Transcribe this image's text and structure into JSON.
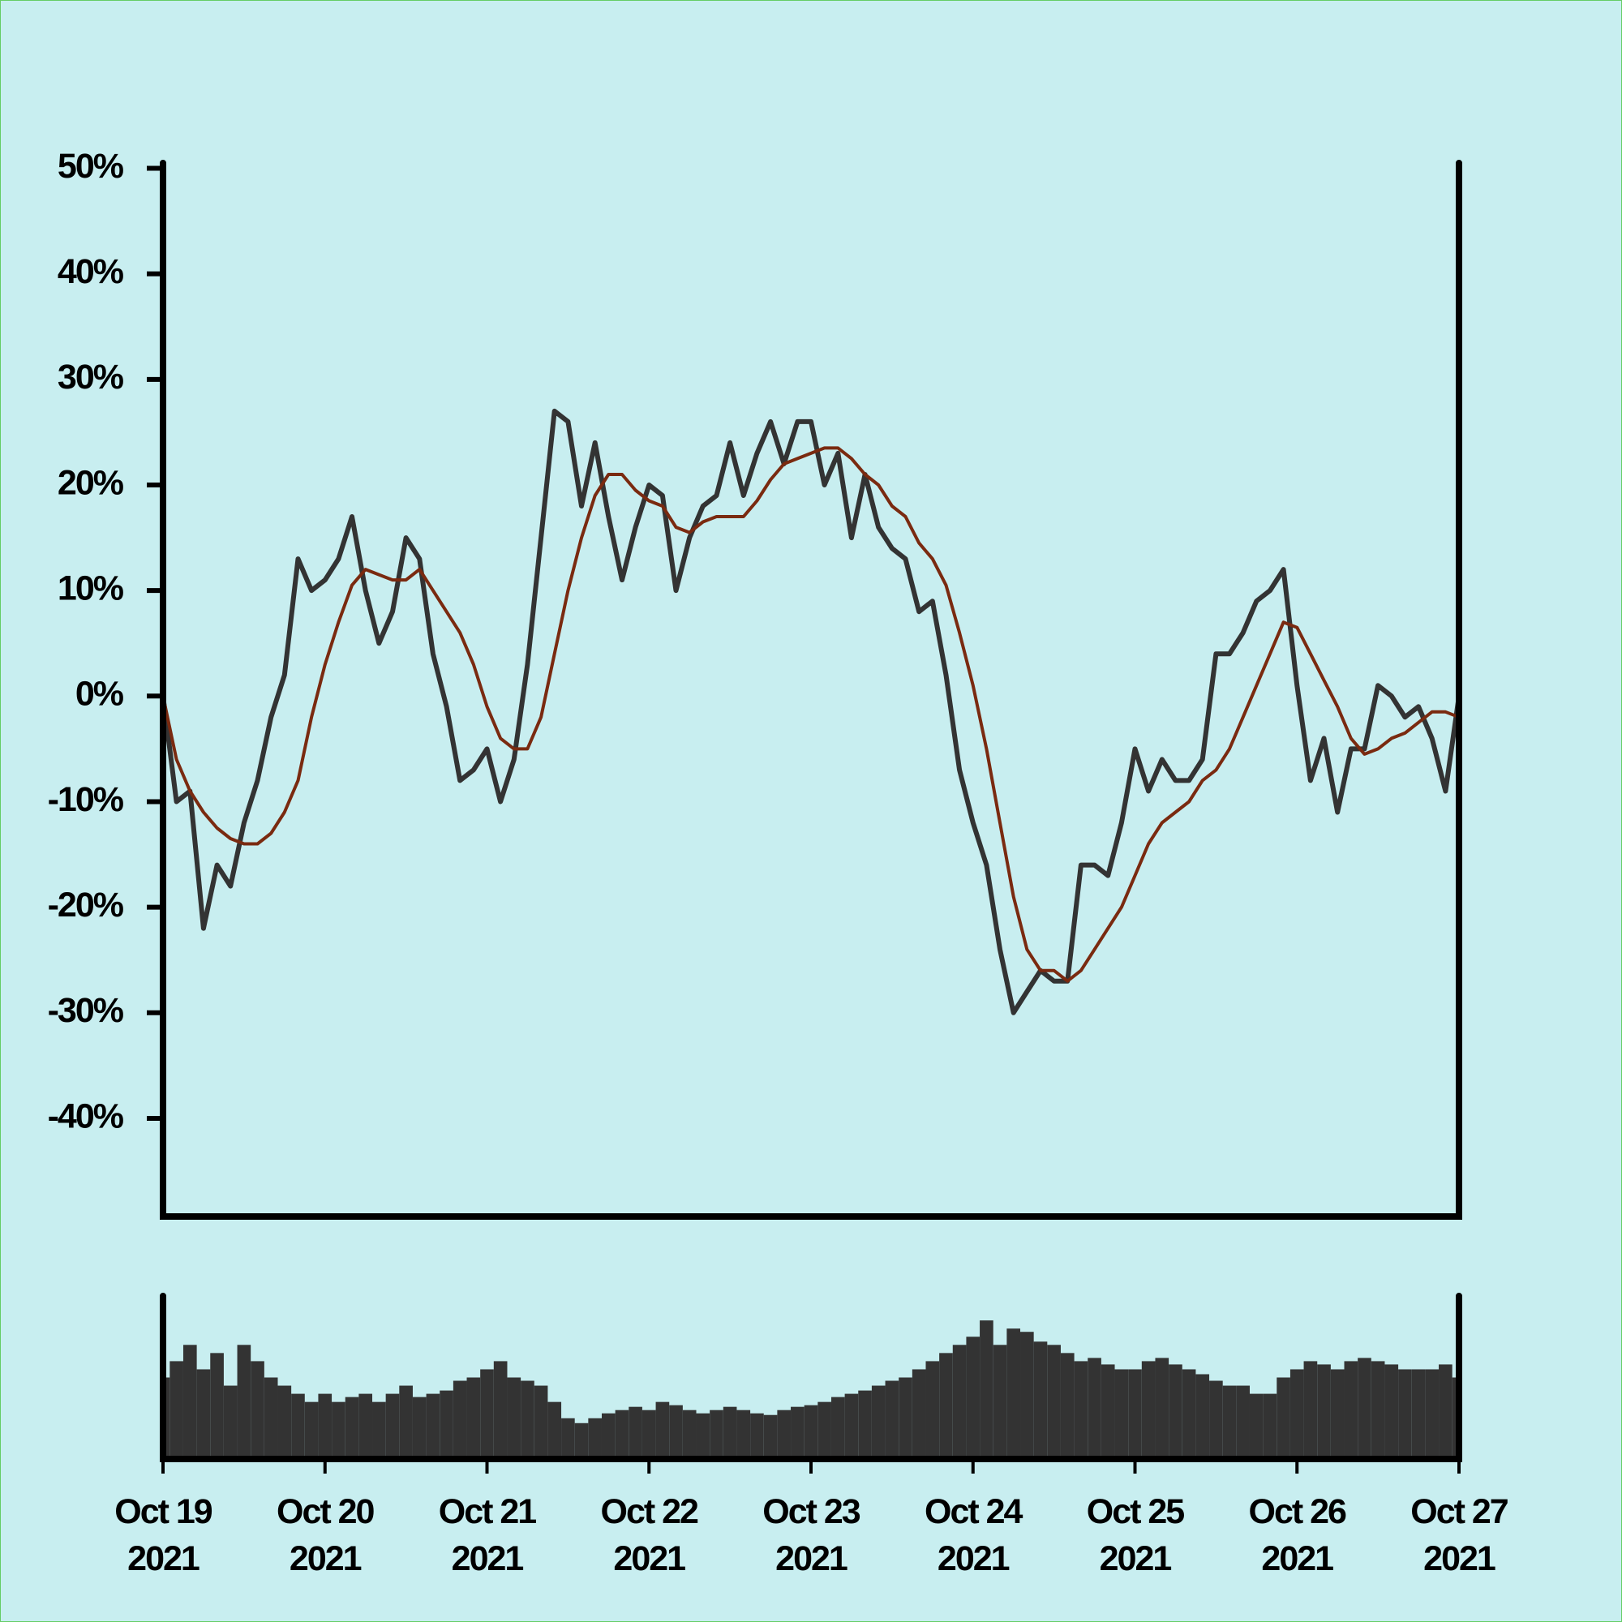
{
  "chart_data": [
    {
      "type": "line",
      "x": [
        "2021-10-19T00:00",
        "2021-10-19T02:00",
        "2021-10-19T04:00",
        "2021-10-19T06:00",
        "2021-10-19T08:00",
        "2021-10-19T10:00",
        "2021-10-19T12:00",
        "2021-10-19T14:00",
        "2021-10-19T16:00",
        "2021-10-19T18:00",
        "2021-10-19T20:00",
        "2021-10-19T22:00",
        "2021-10-20T00:00",
        "2021-10-20T02:00",
        "2021-10-20T04:00",
        "2021-10-20T06:00",
        "2021-10-20T08:00",
        "2021-10-20T10:00",
        "2021-10-20T12:00",
        "2021-10-20T14:00",
        "2021-10-20T16:00",
        "2021-10-20T18:00",
        "2021-10-20T20:00",
        "2021-10-20T22:00",
        "2021-10-21T00:00",
        "2021-10-21T02:00",
        "2021-10-21T04:00",
        "2021-10-21T06:00",
        "2021-10-21T08:00",
        "2021-10-21T10:00",
        "2021-10-21T12:00",
        "2021-10-21T14:00",
        "2021-10-21T16:00",
        "2021-10-21T18:00",
        "2021-10-21T20:00",
        "2021-10-21T22:00",
        "2021-10-22T00:00",
        "2021-10-22T02:00",
        "2021-10-22T04:00",
        "2021-10-22T06:00",
        "2021-10-22T08:00",
        "2021-10-22T10:00",
        "2021-10-22T12:00",
        "2021-10-22T14:00",
        "2021-10-22T16:00",
        "2021-10-22T18:00",
        "2021-10-22T20:00",
        "2021-10-22T22:00",
        "2021-10-23T00:00",
        "2021-10-23T02:00",
        "2021-10-23T04:00",
        "2021-10-23T06:00",
        "2021-10-23T08:00",
        "2021-10-23T10:00",
        "2021-10-23T12:00",
        "2021-10-23T14:00",
        "2021-10-23T16:00",
        "2021-10-23T18:00",
        "2021-10-23T20:00",
        "2021-10-23T22:00",
        "2021-10-24T00:00",
        "2021-10-24T02:00",
        "2021-10-24T04:00",
        "2021-10-24T06:00",
        "2021-10-24T08:00",
        "2021-10-24T10:00",
        "2021-10-24T12:00",
        "2021-10-24T14:00",
        "2021-10-24T16:00",
        "2021-10-24T18:00",
        "2021-10-24T20:00",
        "2021-10-24T22:00",
        "2021-10-25T00:00",
        "2021-10-25T02:00",
        "2021-10-25T04:00",
        "2021-10-25T06:00",
        "2021-10-25T08:00",
        "2021-10-25T10:00",
        "2021-10-25T12:00",
        "2021-10-25T14:00",
        "2021-10-25T16:00",
        "2021-10-25T18:00",
        "2021-10-25T20:00",
        "2021-10-25T22:00",
        "2021-10-26T00:00",
        "2021-10-26T02:00",
        "2021-10-26T04:00",
        "2021-10-26T06:00",
        "2021-10-26T08:00",
        "2021-10-26T10:00",
        "2021-10-26T12:00",
        "2021-10-26T14:00",
        "2021-10-26T16:00",
        "2021-10-26T18:00",
        "2021-10-26T20:00",
        "2021-10-26T22:00",
        "2021-10-27T00:00"
      ],
      "series": [
        {
          "color": "#333333",
          "values": [
            0,
            -10,
            -9,
            -22,
            -16,
            -18,
            -12,
            -8,
            -2,
            2,
            13,
            10,
            11,
            13,
            17,
            10,
            5,
            8,
            15,
            13,
            4,
            -1,
            -8,
            -7,
            -5,
            -10,
            -6,
            3,
            15,
            27,
            26,
            18,
            24,
            17,
            11,
            16,
            20,
            19,
            10,
            15,
            18,
            19,
            24,
            19,
            23,
            26,
            22,
            26,
            26,
            20,
            23,
            15,
            21,
            16,
            14,
            13,
            8,
            9,
            2,
            -7,
            -12,
            -16,
            -24,
            -30,
            -28,
            -26,
            -27,
            -27,
            -16,
            -16,
            -17,
            -12,
            -5,
            -9,
            -6,
            -8,
            -8,
            -6,
            4,
            4,
            6,
            9,
            10,
            12,
            1,
            -8,
            -4,
            -11,
            -5,
            -5,
            1,
            0,
            -2,
            -1,
            -4,
            -9,
            0
          ]
        },
        {
          "color": "#7a2a10",
          "values": [
            0,
            -6,
            -9,
            -11,
            -12.5,
            -13.5,
            -14,
            -14,
            -13,
            -11,
            -8,
            -2,
            3,
            7,
            10.5,
            12,
            11.5,
            11,
            11,
            12,
            10,
            8,
            6,
            3,
            -1,
            -4,
            -5,
            -5,
            -2,
            4,
            10,
            15,
            19,
            21,
            21,
            19.5,
            18.5,
            18,
            16,
            15.5,
            16.5,
            17,
            17,
            17,
            18.5,
            20.5,
            22,
            22.5,
            23,
            23.5,
            23.5,
            22.5,
            21,
            20,
            18,
            17,
            14.5,
            13,
            10.5,
            6,
            1,
            -5,
            -12,
            -19,
            -24,
            -26,
            -26,
            -27,
            -26,
            -24,
            -22,
            -20,
            -17,
            -14,
            -12,
            -11,
            -10,
            -8,
            -7,
            -5,
            -2,
            1,
            4,
            7,
            6.5,
            4,
            1.5,
            -1,
            -4,
            -5.5,
            -5,
            -4,
            -3.5,
            -2.5,
            -1.5,
            -1.5,
            -2
          ]
        }
      ],
      "xlim": [
        "2021-10-19T00:00",
        "2021-10-27T00:00"
      ],
      "ylim": [
        -49.3,
        50.5
      ],
      "yticks": [
        {
          "value": 50,
          "label": "50%"
        },
        {
          "value": 40,
          "label": "40%"
        },
        {
          "value": 30,
          "label": "30%"
        },
        {
          "value": 20,
          "label": "20%"
        },
        {
          "value": 10,
          "label": "10%"
        },
        {
          "value": 0,
          "label": "0%"
        },
        {
          "value": -10,
          "label": "-10%"
        },
        {
          "value": -20,
          "label": "-20%"
        },
        {
          "value": -30,
          "label": "-30%"
        },
        {
          "value": -40,
          "label": "-40%"
        }
      ]
    },
    {
      "type": "bar",
      "color": "#333333",
      "values": [
        50,
        60,
        70,
        55,
        65,
        45,
        70,
        60,
        50,
        45,
        40,
        35,
        40,
        35,
        38,
        40,
        35,
        40,
        45,
        38,
        40,
        42,
        48,
        50,
        55,
        60,
        50,
        48,
        45,
        35,
        25,
        22,
        25,
        28,
        30,
        32,
        30,
        35,
        33,
        30,
        28,
        30,
        32,
        30,
        28,
        27,
        30,
        32,
        33,
        35,
        38,
        40,
        42,
        45,
        48,
        50,
        55,
        60,
        65,
        70,
        75,
        85,
        70,
        80,
        78,
        72,
        70,
        65,
        60,
        62,
        58,
        55,
        55,
        60,
        62,
        58,
        55,
        52,
        48,
        45,
        45,
        40,
        40,
        50,
        55,
        60,
        58,
        55,
        60,
        62,
        60,
        58,
        55,
        55,
        55,
        58,
        50
      ],
      "ylim": [
        0,
        100
      ],
      "xlim": [
        "2021-10-19T00:00",
        "2021-10-27T00:00"
      ],
      "xticks": [
        {
          "value": "2021-10-19T00:00",
          "label": "Oct 19\n2021"
        },
        {
          "value": "2021-10-20T00:00",
          "label": "Oct 20\n2021"
        },
        {
          "value": "2021-10-21T00:00",
          "label": "Oct 21\n2021"
        },
        {
          "value": "2021-10-22T00:00",
          "label": "Oct 22\n2021"
        },
        {
          "value": "2021-10-23T00:00",
          "label": "Oct 23\n2021"
        },
        {
          "value": "2021-10-24T00:00",
          "label": "Oct 24\n2021"
        },
        {
          "value": "2021-10-25T00:00",
          "label": "Oct 25\n2021"
        },
        {
          "value": "2021-10-26T00:00",
          "label": "Oct 26\n2021"
        },
        {
          "value": "2021-10-27T00:00",
          "label": "Oct 27\n2021"
        }
      ]
    }
  ]
}
